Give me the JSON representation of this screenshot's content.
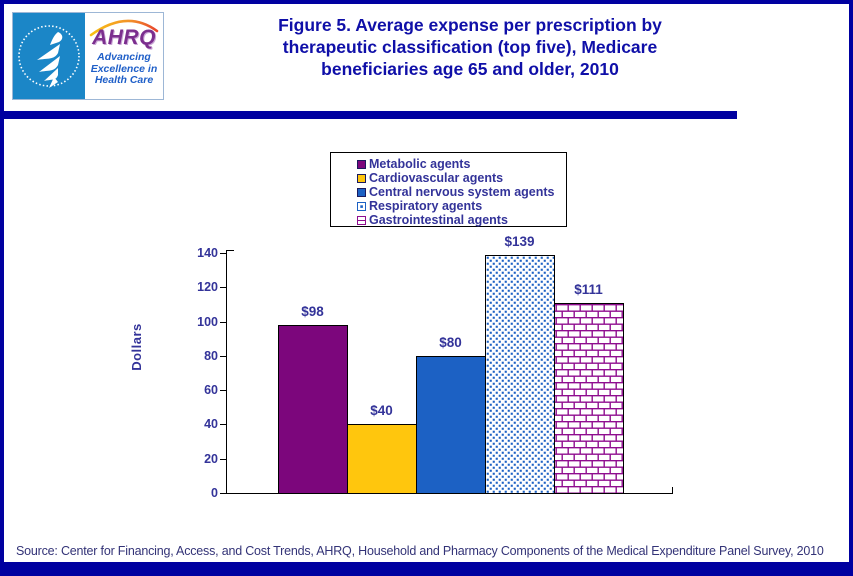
{
  "header": {
    "logo": {
      "org_abbrev": "AHRQ",
      "tagline_lines": [
        "Advancing",
        "Excellence in",
        "Health Care"
      ],
      "seal_name": "hhs-eagle-seal"
    },
    "title_lines": [
      "Figure 5. Average expense per prescription by",
      "therapeutic classification (top five), Medicare",
      "beneficiaries age 65 and older, 2010"
    ]
  },
  "footer": {
    "source": "Source: Center for Financing, Access, and Cost Trends, AHRQ, Household and Pharmacy Components of the Medical Expenditure Panel Survey, 2010"
  },
  "colors": {
    "frame": "#0000A0",
    "title_text": "#0F0FA8",
    "chart_text": "#333399",
    "source_text": "#333377",
    "axis": "#000000",
    "logo_blue": "#1B86C7",
    "logo_purple": "#7B2E8E",
    "logo_tagline_blue": "#1F5FC8"
  },
  "chart_data": {
    "type": "bar",
    "title": "Figure 5. Average expense per prescription by therapeutic classification (top five), Medicare beneficiaries age 65 and older, 2010",
    "xlabel": "",
    "ylabel": "Dollars",
    "ylim": [
      0,
      140
    ],
    "yticks": [
      0,
      20,
      40,
      60,
      80,
      100,
      120,
      140
    ],
    "grid": false,
    "legend_position": "top-center",
    "series": [
      {
        "name": "Metabolic agents",
        "value": 98,
        "data_label": "$98",
        "fill": "solid",
        "color": "#7C067C"
      },
      {
        "name": "Cardiovascular agents",
        "value": 40,
        "data_label": "$40",
        "fill": "solid",
        "color": "#FFC60D"
      },
      {
        "name": "Central nervous system agents",
        "value": 80,
        "data_label": "$80",
        "fill": "solid",
        "color": "#1C61C4"
      },
      {
        "name": "Respiratory agents",
        "value": 139,
        "data_label": "$139",
        "fill": "dots",
        "color": "#1C61C4"
      },
      {
        "name": "Gastrointestinal agents",
        "value": 111,
        "data_label": "$111",
        "fill": "bricks",
        "color": "#8F0D8F"
      }
    ]
  }
}
